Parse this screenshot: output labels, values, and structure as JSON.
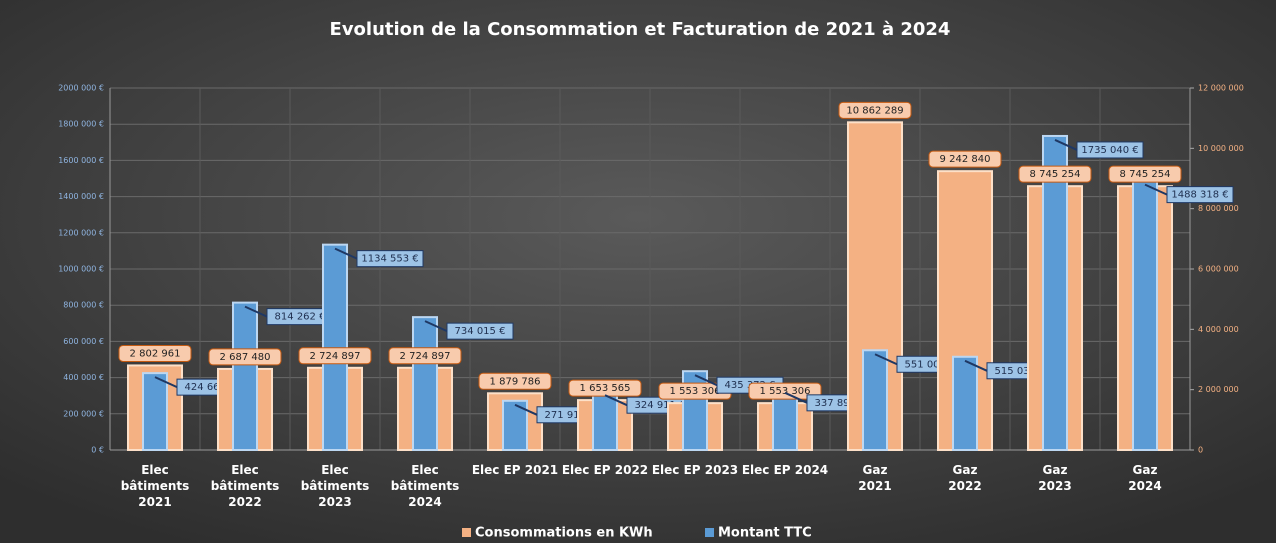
{
  "chart_data": {
    "type": "bar",
    "title": "Evolution de la Consommation et Facturation de 2021 à 2024",
    "categories": [
      "Elec\nbâtiments\n2021",
      "Elec\nbâtiments\n2022",
      "Elec\nbâtiments\n2023",
      "Elec\nbâtiments\n2024",
      "Elec EP 2021",
      "Elec EP 2022",
      "Elec EP 2023",
      "Elec EP 2024",
      "Gaz\n2021",
      "Gaz\n2022",
      "Gaz\n2023",
      "Gaz\n2024"
    ],
    "series": [
      {
        "name": "Consommations en KWh",
        "color": "#f4b183",
        "axis": "y2",
        "values": [
          2802961,
          2687480,
          2724897,
          2724897,
          1879786,
          1653565,
          1553306,
          1553306,
          10862289,
          9242840,
          8745254,
          8745254
        ],
        "value_labels": [
          "2 802 961",
          "2 687 480",
          "2 724 897",
          "2 724 897",
          "1 879 786",
          "1 653 565",
          "1 553 306",
          "1 553 306",
          "10 862 289",
          "9 242 840",
          "8 745 254",
          "8 745 254"
        ]
      },
      {
        "name": "Montant TTC",
        "color": "#5b9bd5",
        "values": [
          424668,
          814262,
          1134553,
          734015,
          271919,
          324911,
          435372,
          337892,
          551006,
          515033,
          1735040,
          1488318
        ],
        "value_labels": [
          "424 668 €",
          "814 262 €",
          "1134 553 €",
          "734 015 €",
          "271 919 €",
          "324 911 €",
          "435 372 €",
          "337 892 €",
          "551 006 €",
          "515 033 €",
          "1735 040 €",
          "1488 318 €"
        ]
      }
    ],
    "ylim": [
      0,
      2000000
    ],
    "yticks": [
      {
        "value": 0,
        "label": "0 €"
      },
      {
        "value": 200000,
        "label": "200 000 €"
      },
      {
        "value": 400000,
        "label": "400 000 €"
      },
      {
        "value": 600000,
        "label": "600 000 €"
      },
      {
        "value": 800000,
        "label": "800 000 €"
      },
      {
        "value": 1000000,
        "label": "1000 000 €"
      },
      {
        "value": 1200000,
        "label": "1200 000 €"
      },
      {
        "value": 1400000,
        "label": "1400 000 €"
      },
      {
        "value": 1600000,
        "label": "1600 000 €"
      },
      {
        "value": 1800000,
        "label": "1800 000 €"
      },
      {
        "value": 2000000,
        "label": "2000 000 €"
      }
    ],
    "y2lim": [
      0,
      12000000
    ],
    "y2ticks": [
      0,
      {
        "value": 2000000,
        "label": "2 000 000"
      },
      {
        "value": 4000000,
        "label": "4 000 000"
      },
      {
        "value": 6000000,
        "label": "6 000 000"
      },
      {
        "value": 8000000,
        "label": "8 000 000"
      },
      {
        "value": 10000000,
        "label": "10 000 000"
      },
      {
        "value": 12000000,
        "label": "12 000 000"
      }
    ],
    "grid": true,
    "legend": "bottom"
  }
}
